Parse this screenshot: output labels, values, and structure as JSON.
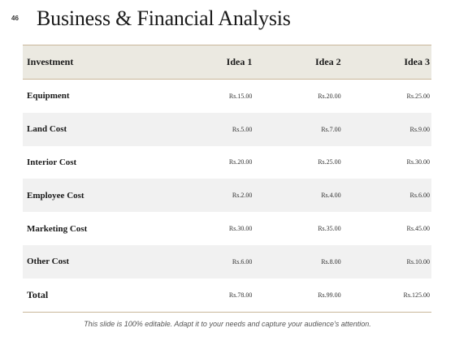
{
  "slide_number": "46",
  "title": "Business & Financial Analysis",
  "table": {
    "headers": [
      "Investment",
      "Idea 1",
      "Idea 2",
      "Idea 3"
    ],
    "rows": [
      {
        "label": "Equipment",
        "values": [
          "Rs.15.00",
          "Rs.20.00",
          "Rs.25.00"
        ]
      },
      {
        "label": "Land Cost",
        "values": [
          "Rs.5.00",
          "Rs.7.00",
          "Rs.9.00"
        ]
      },
      {
        "label": "Interior Cost",
        "values": [
          "Rs.20.00",
          "Rs.25.00",
          "Rs.30.00"
        ]
      },
      {
        "label": "Employee Cost",
        "values": [
          "Rs.2.00",
          "Rs.4.00",
          "Rs.6.00"
        ]
      },
      {
        "label": "Marketing Cost",
        "values": [
          "Rs.30.00",
          "Rs.35.00",
          "Rs.45.00"
        ]
      },
      {
        "label": "Other Cost",
        "values": [
          "Rs.6.00",
          "Rs.8.00",
          "Rs.10.00"
        ]
      },
      {
        "label": "Total",
        "values": [
          "Rs.78.00",
          "Rs.99.00",
          "Rs.125.00"
        ]
      }
    ]
  },
  "footer": "This slide is 100% editable. Adapt it to your needs and capture your audience's attention.",
  "colors": {
    "header_band": "#ebe9e1",
    "alt_row": "#f1f1f1",
    "rule": "#c9b79a"
  }
}
